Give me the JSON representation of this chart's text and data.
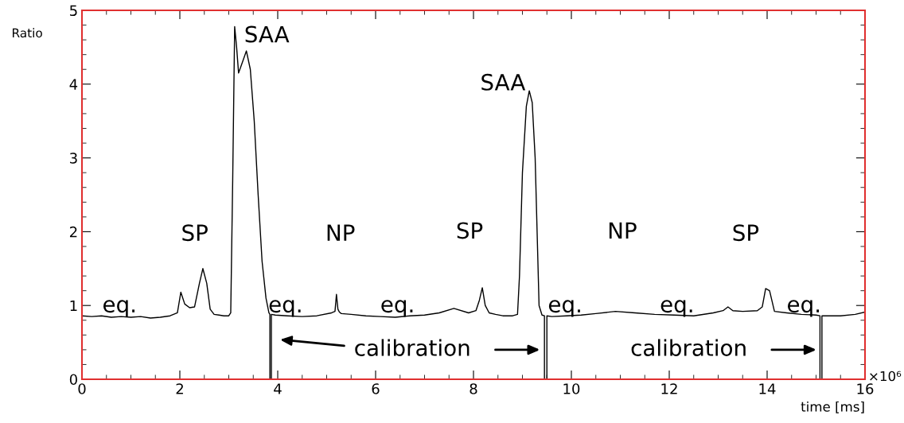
{
  "chart_data": {
    "type": "line",
    "xlabel": "time [ms]",
    "ylabel": "Ratio",
    "xlim": [
      0,
      16
    ],
    "xticks": [
      0,
      2,
      4,
      6,
      8,
      10,
      12,
      14,
      16
    ],
    "ylim": [
      0,
      5
    ],
    "yticks": [
      0,
      1,
      2,
      3,
      4,
      5
    ],
    "grid": false,
    "legend": false,
    "series": [
      {
        "color": "#000000",
        "x": [
          0,
          0.2,
          0.4,
          0.6,
          0.8,
          1.0,
          1.2,
          1.4,
          1.6,
          1.8,
          1.95,
          2.02,
          2.1,
          2.2,
          2.3,
          2.4,
          2.47,
          2.55,
          2.62,
          2.7,
          2.8,
          2.9,
          3.0,
          3.04,
          3.08,
          3.12,
          3.16,
          3.2,
          3.28,
          3.36,
          3.44,
          3.52,
          3.6,
          3.68,
          3.76,
          3.82,
          3.84,
          3.84,
          3.87,
          3.87,
          3.95,
          4.2,
          4.5,
          4.8,
          5.1,
          5.17,
          5.2,
          5.23,
          5.26,
          5.3,
          5.5,
          5.8,
          6.1,
          6.4,
          6.7,
          7.0,
          7.3,
          7.6,
          7.9,
          8.05,
          8.12,
          8.18,
          8.24,
          8.32,
          8.45,
          8.6,
          8.8,
          8.9,
          8.94,
          9.0,
          9.08,
          9.14,
          9.2,
          9.26,
          9.3,
          9.34,
          9.4,
          9.45,
          9.45,
          9.5,
          9.5,
          9.6,
          9.9,
          10.2,
          10.5,
          10.9,
          11.3,
          11.7,
          12.1,
          12.5,
          12.9,
          13.1,
          13.2,
          13.3,
          13.5,
          13.8,
          13.9,
          13.97,
          14.05,
          14.15,
          14.4,
          14.7,
          15.0,
          15.08,
          15.08,
          15.12,
          15.12,
          15.2,
          15.5,
          15.8,
          16.0
        ],
        "values": [
          0.86,
          0.85,
          0.86,
          0.84,
          0.85,
          0.84,
          0.85,
          0.83,
          0.84,
          0.86,
          0.9,
          1.18,
          1.02,
          0.97,
          0.98,
          1.3,
          1.5,
          1.3,
          0.95,
          0.88,
          0.87,
          0.86,
          0.86,
          0.9,
          2.7,
          4.78,
          4.5,
          4.15,
          4.3,
          4.45,
          4.2,
          3.5,
          2.5,
          1.6,
          1.1,
          0.9,
          0.88,
          0.0,
          0.0,
          0.88,
          0.87,
          0.86,
          0.85,
          0.86,
          0.9,
          0.92,
          1.15,
          0.95,
          0.91,
          0.89,
          0.88,
          0.86,
          0.85,
          0.84,
          0.86,
          0.87,
          0.9,
          0.96,
          0.9,
          0.93,
          1.07,
          1.24,
          1.0,
          0.9,
          0.88,
          0.86,
          0.86,
          0.88,
          1.4,
          2.8,
          3.7,
          3.91,
          3.75,
          3.0,
          2.0,
          1.0,
          0.87,
          0.86,
          0.0,
          0.0,
          0.86,
          0.85,
          0.86,
          0.87,
          0.89,
          0.92,
          0.9,
          0.88,
          0.87,
          0.86,
          0.9,
          0.93,
          0.98,
          0.93,
          0.92,
          0.93,
          0.98,
          1.23,
          1.2,
          0.92,
          0.9,
          0.88,
          0.87,
          0.86,
          0.0,
          0.0,
          0.86,
          0.86,
          0.86,
          0.88,
          0.91
        ]
      }
    ],
    "annotations": [
      "eq.",
      "SP",
      "SAA",
      "eq.",
      "NP",
      "eq.",
      "calibration",
      "SP",
      "SAA",
      "eq.",
      "NP",
      "eq.",
      "calibration",
      "SP",
      "eq.",
      "×10⁶"
    ]
  }
}
